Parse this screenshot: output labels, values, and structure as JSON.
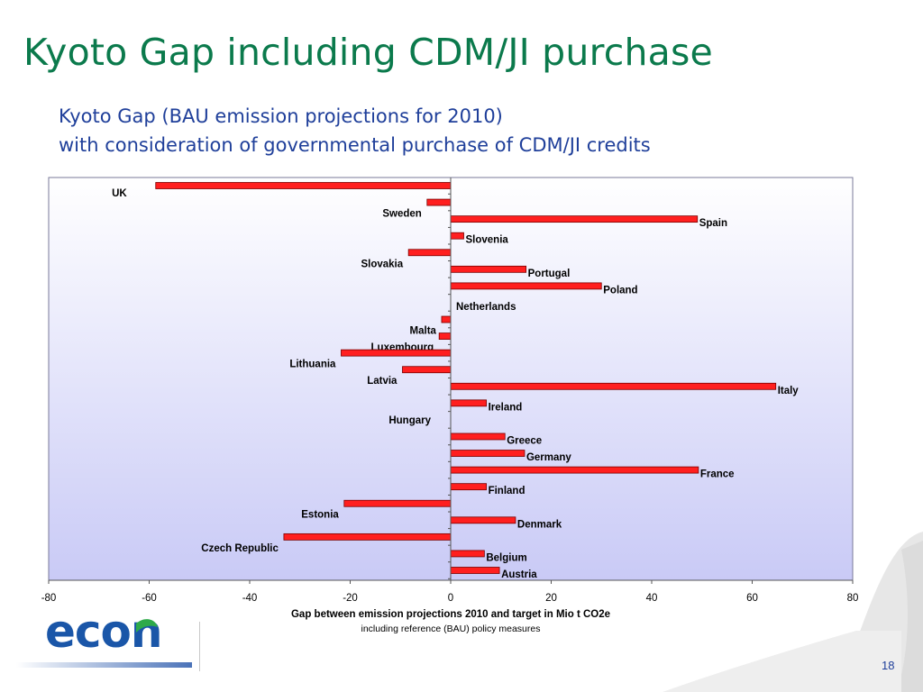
{
  "slide": {
    "title": "Kyoto Gap including CDM/JI purchase",
    "subtitle_line1": "Kyoto Gap (BAU emission projections for 2010)",
    "subtitle_line2": "with consideration of  governmental purchase of CDM/JI credits",
    "page_number": "18",
    "logo_text": "econ"
  },
  "colors": {
    "title": "#0b7a4c",
    "subtitle": "#1f3f9a",
    "bar_fill": "#ff1f1f",
    "bar_stroke": "#7a0000",
    "plot_bg_top": "#ffffff",
    "plot_bg_bottom": "#c9caf6",
    "logo_blue": "#1a56a8",
    "logo_green": "#2eaa4a"
  },
  "chart_data": {
    "type": "bar",
    "orientation": "horizontal",
    "xlabel": "Gap between emission projections 2010 and target in Mio t CO2e",
    "xlabel_sub": "including reference (BAU) policy measures",
    "xlim": [
      -80,
      80
    ],
    "xticks": [
      -80,
      -60,
      -40,
      -20,
      0,
      20,
      40,
      60,
      80
    ],
    "grid": false,
    "categories": [
      "UK",
      "Sweden",
      "Spain",
      "Slovenia",
      "Slovakia",
      "Portugal",
      "Poland",
      "Netherlands",
      "Malta",
      "Luxembourg",
      "Lithuania",
      "Latvia",
      "Italy",
      "Ireland",
      "Hungary",
      "Greece",
      "Germany",
      "France",
      "Finland",
      "Estonia",
      "Denmark",
      "Czech Republic",
      "Belgium",
      "Austria"
    ],
    "values": [
      -58.7,
      -4.7,
      49.1,
      2.6,
      -8.4,
      15.0,
      30.0,
      0.0,
      -1.8,
      -2.3,
      -21.8,
      -9.6,
      64.7,
      7.1,
      0.0,
      10.8,
      14.7,
      49.3,
      7.1,
      -21.2,
      12.9,
      -33.2,
      6.7,
      9.7
    ]
  }
}
